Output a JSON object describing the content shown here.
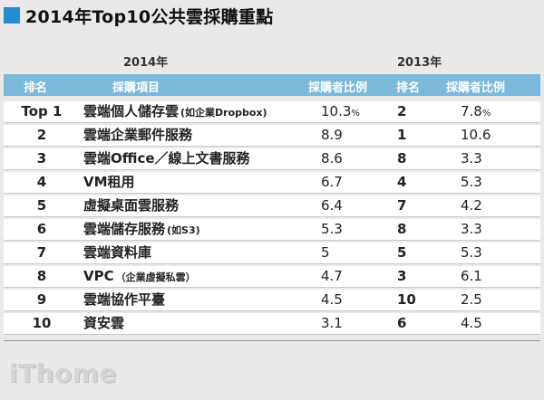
{
  "title": "2014年Top10公共雲採購重點",
  "years": {
    "y2014": "2014年",
    "y2013": "2013年"
  },
  "headers": {
    "rank": "排名",
    "item": "採購項目",
    "ratio": "採購者比例",
    "rank13": "排名",
    "ratio13": "採購者比例"
  },
  "rows": [
    {
      "rank": "Top 1",
      "item": "雲端個人儲存雲",
      "note": "(如企業Dropbox)",
      "ratio": "10.3",
      "ratio_pct": "%",
      "rank13": "2",
      "ratio13": "7.8",
      "ratio13_pct": "%"
    },
    {
      "rank": "2",
      "item": "雲端企業郵件服務",
      "note": "",
      "ratio": "8.9",
      "ratio_pct": "",
      "rank13": "1",
      "ratio13": "10.6",
      "ratio13_pct": ""
    },
    {
      "rank": "3",
      "item": "雲端Office／線上文書服務",
      "note": "",
      "ratio": "8.6",
      "ratio_pct": "",
      "rank13": "8",
      "ratio13": "3.3",
      "ratio13_pct": ""
    },
    {
      "rank": "4",
      "item": "VM租用",
      "note": "",
      "ratio": "6.7",
      "ratio_pct": "",
      "rank13": "4",
      "ratio13": "5.3",
      "ratio13_pct": ""
    },
    {
      "rank": "5",
      "item": "虛擬桌面雲服務",
      "note": "",
      "ratio": "6.4",
      "ratio_pct": "",
      "rank13": "7",
      "ratio13": "4.2",
      "ratio13_pct": ""
    },
    {
      "rank": "6",
      "item": "雲端儲存服務",
      "note": "(如S3)",
      "ratio": "5.3",
      "ratio_pct": "",
      "rank13": "8",
      "ratio13": "3.3",
      "ratio13_pct": ""
    },
    {
      "rank": "7",
      "item": "雲端資料庫",
      "note": "",
      "ratio": "5",
      "ratio_pct": "",
      "rank13": "5",
      "ratio13": "5.3",
      "ratio13_pct": ""
    },
    {
      "rank": "8",
      "item": "VPC",
      "note": "（企業虛擬私雲）",
      "ratio": "4.7",
      "ratio_pct": "",
      "rank13": "3",
      "ratio13": "6.1",
      "ratio13_pct": ""
    },
    {
      "rank": "9",
      "item": "雲端協作平臺",
      "note": "",
      "ratio": "4.5",
      "ratio_pct": "",
      "rank13": "10",
      "ratio13": "2.5",
      "ratio13_pct": ""
    },
    {
      "rank": "10",
      "item": "資安雲",
      "note": "",
      "ratio": "3.1",
      "ratio_pct": "",
      "rank13": "6",
      "ratio13": "4.5",
      "ratio13_pct": ""
    }
  ],
  "logo": "iThome",
  "colors": {
    "accent": "#1e8fd0",
    "header_bg": "#7bb8d9",
    "background": "#e9e9e9"
  }
}
